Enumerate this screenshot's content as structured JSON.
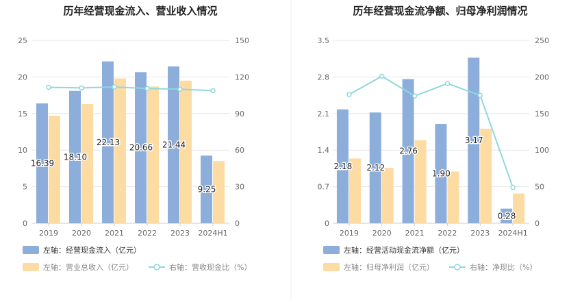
{
  "chart_data": [
    {
      "type": "bar",
      "title": "历年经营现金流入、营业收入情况",
      "categories": [
        "2019",
        "2020",
        "2021",
        "2022",
        "2023",
        "2024H1"
      ],
      "series": [
        {
          "name": "左轴：经营现金流入（亿元）",
          "axis": "left",
          "kind": "bar",
          "color": "#8DAEDB",
          "values": [
            16.39,
            18.1,
            22.13,
            20.66,
            21.44,
            9.25
          ],
          "labels": [
            "16.39",
            "18.10",
            "22.13",
            "20.66",
            "21.44",
            "9.25"
          ]
        },
        {
          "name": "左轴：营业总收入（亿元）",
          "axis": "left",
          "kind": "bar",
          "color": "#FDDCA3",
          "values": [
            14.7,
            16.3,
            19.8,
            18.7,
            19.5,
            8.5
          ]
        },
        {
          "name": "右轴：营收现金比（%）",
          "axis": "right",
          "kind": "line",
          "color": "#8ED8DC",
          "values": [
            111.5,
            111.0,
            111.8,
            110.5,
            110.0,
            108.8
          ]
        }
      ],
      "yleft": {
        "min": 0,
        "max": 25,
        "ticks": [
          "0",
          "5",
          "10",
          "15",
          "20",
          "25"
        ]
      },
      "yright": {
        "min": 0,
        "max": 150,
        "ticks": [
          "0",
          "30",
          "60",
          "90",
          "120",
          "150"
        ]
      },
      "grid": true,
      "legend": "bottom-left"
    },
    {
      "type": "bar",
      "title": "历年经营现金流净额、归母净利润情况",
      "categories": [
        "2019",
        "2020",
        "2021",
        "2022",
        "2023",
        "2024H1"
      ],
      "series": [
        {
          "name": "左轴：经营活动现金流净额（亿元）",
          "axis": "left",
          "kind": "bar",
          "color": "#8DAEDB",
          "values": [
            2.18,
            2.12,
            2.76,
            1.9,
            3.17,
            0.28
          ],
          "labels": [
            "2.18",
            "2.12",
            "2.76",
            "1.90",
            "3.17",
            "0.28"
          ]
        },
        {
          "name": "左轴：归母净利润（亿元）",
          "axis": "left",
          "kind": "bar",
          "color": "#FDDCA3",
          "values": [
            1.24,
            1.06,
            1.59,
            0.99,
            1.81,
            0.57
          ]
        },
        {
          "name": "右轴：净现比（%）",
          "axis": "right",
          "kind": "line",
          "color": "#8ED8DC",
          "values": [
            176,
            201,
            174,
            191,
            175,
            49
          ]
        }
      ],
      "yleft": {
        "min": 0,
        "max": 3.5,
        "ticks": [
          "0",
          "0.7",
          "1.4",
          "2.1",
          "2.8",
          "3.5"
        ]
      },
      "yright": {
        "min": 0,
        "max": 250,
        "ticks": [
          "0",
          "50",
          "100",
          "150",
          "200",
          "250"
        ]
      },
      "grid": true,
      "legend": "bottom-left"
    }
  ]
}
